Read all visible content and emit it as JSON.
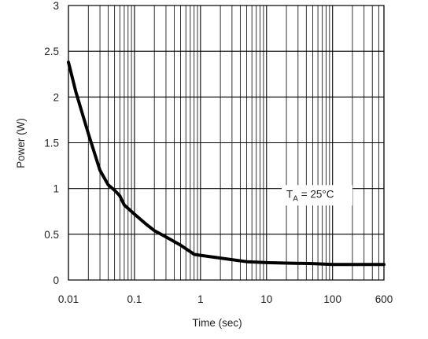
{
  "chart_data": {
    "type": "line",
    "title": "",
    "xlabel": "Time (sec)",
    "ylabel": "Power  (W)",
    "x_scale": "log",
    "xlim": [
      0.01,
      600
    ],
    "ylim": [
      0,
      3
    ],
    "grid": true,
    "x_ticks": [
      0.01,
      0.1,
      1,
      10,
      100,
      600
    ],
    "x_tick_labels": [
      "0.01",
      "0.1",
      "1",
      "10",
      "100",
      "600"
    ],
    "y_ticks": [
      0,
      0.5,
      1,
      1.5,
      2,
      2.5,
      3
    ],
    "y_tick_labels": [
      "0",
      "0.5",
      "1",
      "1.5",
      "2",
      "2.5",
      "3"
    ],
    "annotation": {
      "main": "T",
      "subscript": "A",
      "rest": " = 25°C",
      "x": 20,
      "y": 0.9
    },
    "series": [
      {
        "color": "#000000",
        "x": [
          0.01,
          0.013,
          0.02,
          0.03,
          0.04,
          0.05,
          0.06,
          0.07,
          0.1,
          0.15,
          0.2,
          0.3,
          0.5,
          0.7,
          0.8,
          1,
          2,
          5,
          10,
          20,
          50,
          100,
          200,
          600
        ],
        "y": [
          2.38,
          2.05,
          1.6,
          1.2,
          1.04,
          0.98,
          0.92,
          0.82,
          0.72,
          0.61,
          0.54,
          0.47,
          0.38,
          0.31,
          0.28,
          0.27,
          0.24,
          0.2,
          0.19,
          0.185,
          0.18,
          0.17,
          0.17,
          0.17
        ]
      }
    ]
  }
}
